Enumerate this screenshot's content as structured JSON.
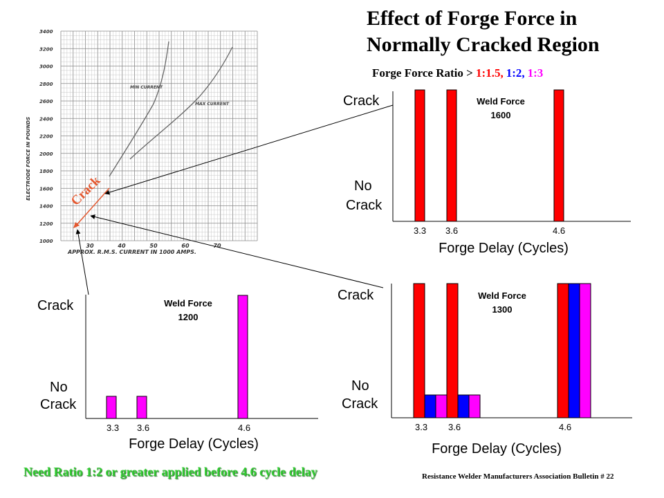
{
  "title_line1": "Effect of Forge Force in",
  "title_line2": "Normally Cracked Region",
  "ratio_prefix": "Forge Force Ratio > ",
  "ratios": [
    {
      "label": "1:1.5,",
      "color": "#ff0000"
    },
    {
      "label": "1:2,",
      "color": "#0000ff"
    },
    {
      "label": "1:3",
      "color": "#ff00ff"
    }
  ],
  "footer_note": "Need Ratio 1:2 or greater applied before 4.6 cycle delay",
  "credit": "Resistance Welder Manufacturers Association Bulletin # 22",
  "scan_chart": {
    "ylabel": "ELECTRODE FORCE IN POUNDS",
    "xlabel": "APPROX. R.M.S. CURRENT IN 1000 AMPS.",
    "yticks": [
      "1000",
      "1200",
      "1400",
      "1600",
      "1800",
      "2000",
      "2200",
      "2400",
      "2600",
      "2800",
      "3000",
      "3200",
      "3400"
    ],
    "xticks": [
      "30",
      "40",
      "50",
      "60",
      "70"
    ],
    "min_curve_label": "MIN CURRENT",
    "max_curve_label": "MAX CURRENT",
    "crack_label": "Crack"
  },
  "chart_data": [
    {
      "type": "bar",
      "title": "Weld Force 1600",
      "weld_force_label": "Weld Force",
      "weld_force_value": "1600",
      "xlabel": "Forge Delay (Cycles)",
      "ylabel_top": "Crack",
      "ylabel_bottom_1": "No",
      "ylabel_bottom_2": "Crack",
      "categories": [
        "3.3",
        "3.6",
        "4.6"
      ],
      "ylim": [
        0,
        1
      ],
      "series": [
        {
          "name": "1:1.5",
          "color": "#ff0000",
          "values": [
            1,
            1,
            1
          ]
        }
      ]
    },
    {
      "type": "bar",
      "title": "Weld Force 1300",
      "weld_force_label": "Weld Force",
      "weld_force_value": "1300",
      "xlabel": "Forge Delay (Cycles)",
      "ylabel_top": "Crack",
      "ylabel_bottom_1": "No",
      "ylabel_bottom_2": "Crack",
      "categories": [
        "3.3",
        "3.6",
        "4.6"
      ],
      "ylim": [
        0,
        1
      ],
      "series": [
        {
          "name": "1:1.5",
          "color": "#ff0000",
          "values": [
            1,
            1,
            1
          ]
        },
        {
          "name": "1:2",
          "color": "#0000ff",
          "values": [
            0.17,
            0.17,
            1
          ]
        },
        {
          "name": "1:3",
          "color": "#ff00ff",
          "values": [
            0.17,
            0.17,
            1
          ]
        }
      ]
    },
    {
      "type": "bar",
      "title": "Weld Force 1200",
      "weld_force_label": "Weld Force",
      "weld_force_value": "1200",
      "xlabel": "Forge Delay (Cycles)",
      "ylabel_top": "Crack",
      "ylabel_bottom_1": "No",
      "ylabel_bottom_2": "Crack",
      "categories": [
        "3.3",
        "3.6",
        "4.6"
      ],
      "ylim": [
        0,
        1
      ],
      "series": [
        {
          "name": "1:3",
          "color": "#ff00ff",
          "values": [
            0.18,
            0.18,
            1
          ]
        }
      ]
    }
  ]
}
